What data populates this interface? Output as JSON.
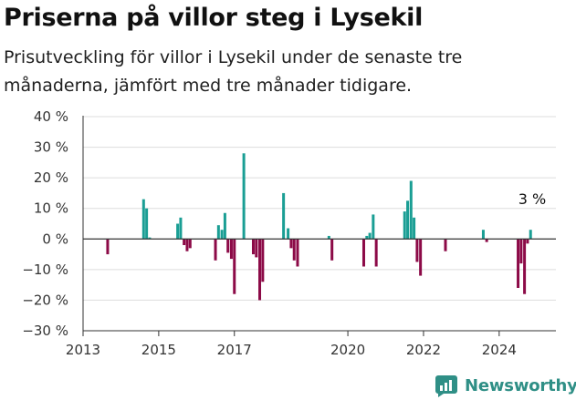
{
  "title": "Priserna på villor steg i Lysekil",
  "subtitle": "Prisutveckling för villor i Lysekil under de senaste tre månaderna, jämfört med tre månader tidigare.",
  "logo_text": "Newsworthy",
  "colors": {
    "positive": "#1a9e94",
    "negative": "#8c0a47",
    "grid": "#dddddd",
    "axis": "#333333",
    "logo": "#2f8f86"
  },
  "chart_data": {
    "type": "bar",
    "title": "Priserna på villor steg i Lysekil",
    "xlabel": "",
    "ylabel": "",
    "xlim": [
      2013.0,
      2025.5
    ],
    "ylim": [
      -30,
      40
    ],
    "y_ticks": [
      40,
      30,
      20,
      10,
      0,
      -10,
      -20,
      -30
    ],
    "y_tick_labels": [
      "40 %",
      "30 %",
      "20 %",
      "10 %",
      "0 %",
      "−10 %",
      "−20 %",
      "−30 %"
    ],
    "x_ticks": [
      2013,
      2015,
      2017,
      2020,
      2022,
      2024
    ],
    "x_tick_labels": [
      "2013",
      "2015",
      "2017",
      "2020",
      "2022",
      "2024"
    ],
    "grid": true,
    "annotation": {
      "text": "3 %",
      "x": 2024.92,
      "y": 3
    },
    "series": [
      {
        "points": [
          [
            2013.65,
            -5
          ],
          [
            2014.6,
            13
          ],
          [
            2014.68,
            10
          ],
          [
            2014.76,
            0.5
          ],
          [
            2015.5,
            5
          ],
          [
            2015.58,
            7
          ],
          [
            2015.67,
            -2
          ],
          [
            2015.75,
            -4
          ],
          [
            2015.83,
            -3
          ],
          [
            2016.5,
            -7
          ],
          [
            2016.58,
            4.5
          ],
          [
            2016.67,
            3
          ],
          [
            2016.75,
            8.5
          ],
          [
            2016.83,
            -4.5
          ],
          [
            2016.92,
            -6.5
          ],
          [
            2017.0,
            -18
          ],
          [
            2017.25,
            28
          ],
          [
            2017.5,
            -5
          ],
          [
            2017.58,
            -6
          ],
          [
            2017.67,
            -20
          ],
          [
            2017.75,
            -14
          ],
          [
            2018.3,
            15
          ],
          [
            2018.42,
            3.5
          ],
          [
            2018.5,
            -3
          ],
          [
            2018.58,
            -7
          ],
          [
            2018.67,
            -9
          ],
          [
            2019.5,
            1
          ],
          [
            2019.58,
            -7
          ],
          [
            2020.42,
            -9
          ],
          [
            2020.5,
            1
          ],
          [
            2020.58,
            2
          ],
          [
            2020.67,
            8
          ],
          [
            2020.75,
            -9
          ],
          [
            2021.5,
            9
          ],
          [
            2021.58,
            12.5
          ],
          [
            2021.67,
            19
          ],
          [
            2021.75,
            7
          ],
          [
            2021.83,
            -7.5
          ],
          [
            2021.92,
            -12
          ],
          [
            2022.58,
            -4
          ],
          [
            2023.58,
            3
          ],
          [
            2023.67,
            -1
          ],
          [
            2024.5,
            -16
          ],
          [
            2024.58,
            -8
          ],
          [
            2024.67,
            -18
          ],
          [
            2024.75,
            -1.5
          ],
          [
            2024.83,
            3
          ]
        ]
      }
    ]
  }
}
